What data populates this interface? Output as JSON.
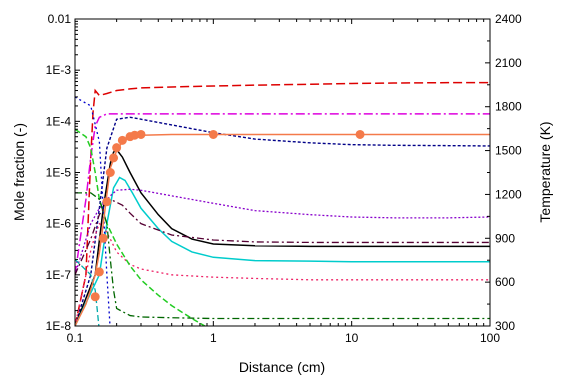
{
  "chart_data": {
    "type": "line",
    "xlabel": "Distance (cm)",
    "ylabel_left": "Mole fraction (-)",
    "ylabel_right": "Temperature (K)",
    "x_scale": "log",
    "y_left_scale": "log",
    "xlim": [
      0.1,
      100
    ],
    "ylim_left": [
      1e-08,
      0.01
    ],
    "ylim_right": [
      300,
      2400
    ],
    "x_ticks": [
      {
        "value": 0.1,
        "label": "0.1"
      },
      {
        "value": 1,
        "label": "1"
      },
      {
        "value": 10,
        "label": "10"
      },
      {
        "value": 100,
        "label": "100"
      }
    ],
    "y_left_ticks": [
      {
        "value": 1e-08,
        "label": "1E-8"
      },
      {
        "value": 1e-07,
        "label": "1E-7"
      },
      {
        "value": 1e-06,
        "label": "1E-6"
      },
      {
        "value": 1e-05,
        "label": "1E-5"
      },
      {
        "value": 0.0001,
        "label": "1E-4"
      },
      {
        "value": 0.001,
        "label": "1E-3"
      },
      {
        "value": 0.01,
        "label": "0.01"
      }
    ],
    "y_right_ticks": [
      {
        "value": 300,
        "label": "300"
      },
      {
        "value": 600,
        "label": "600"
      },
      {
        "value": 900,
        "label": "900"
      },
      {
        "value": 1200,
        "label": "1200"
      },
      {
        "value": 1500,
        "label": "1500"
      },
      {
        "value": 1800,
        "label": "1800"
      },
      {
        "value": 2100,
        "label": "2100"
      },
      {
        "value": 2400,
        "label": "2400"
      }
    ],
    "grid": false,
    "legend": "none",
    "series": [
      {
        "axis": "left",
        "color": "#dd0000",
        "dash": "9,4",
        "width": 1.5,
        "x": [
          0.1,
          0.12,
          0.13,
          0.135,
          0.14,
          0.15,
          0.17,
          0.2,
          0.25,
          0.3,
          0.5,
          1,
          2,
          5,
          10,
          20,
          50,
          100
        ],
        "y": [
          1e-08,
          1e-07,
          2e-05,
          0.00015,
          0.0004,
          0.00032,
          0.00035,
          0.0004,
          0.00043,
          0.00045,
          0.00047,
          0.00049,
          0.00051,
          0.00053,
          0.00055,
          0.00056,
          0.00057,
          0.00057
        ]
      },
      {
        "axis": "left",
        "color": "#dd00dd",
        "dash": "9,3,2,3",
        "width": 1.5,
        "x": [
          0.1,
          0.12,
          0.13,
          0.14,
          0.15,
          0.17,
          0.2,
          0.5,
          1,
          10,
          100
        ],
        "y": [
          1e-07,
          3e-06,
          2e-05,
          8e-05,
          0.00012,
          0.00014,
          0.00014,
          0.00014,
          0.00014,
          0.00014,
          0.00014
        ]
      },
      {
        "axis": "left",
        "color": "#000088",
        "dash": "3,2",
        "width": 1.4,
        "x": [
          0.1,
          0.13,
          0.15,
          0.17,
          0.2,
          0.25,
          0.3,
          0.5,
          1,
          2,
          5,
          10,
          20,
          50,
          100
        ],
        "y": [
          1e-08,
          1e-07,
          2e-06,
          3e-05,
          0.00011,
          0.00012,
          0.00011,
          8.5e-05,
          6e-05,
          4.5e-05,
          3.8e-05,
          3.5e-05,
          3.4e-05,
          3.35e-05,
          3.3e-05
        ]
      },
      {
        "axis": "left",
        "color": "#000000",
        "dash": "",
        "width": 1.5,
        "x": [
          0.1,
          0.14,
          0.16,
          0.18,
          0.19,
          0.2,
          0.22,
          0.25,
          0.3,
          0.4,
          0.5,
          0.7,
          1,
          2,
          5,
          10,
          50,
          100
        ],
        "y": [
          1e-08,
          1e-07,
          2e-06,
          1.5e-05,
          2.5e-05,
          2.8e-05,
          2e-05,
          1e-05,
          4e-06,
          1.5e-06,
          8e-07,
          5e-07,
          4e-07,
          3.7e-07,
          3.6e-07,
          3.6e-07,
          3.6e-07,
          3.6e-07
        ]
      },
      {
        "axis": "left",
        "color": "#00cccc",
        "dash": "",
        "width": 1.5,
        "x": [
          0.1,
          0.15,
          0.17,
          0.19,
          0.21,
          0.23,
          0.26,
          0.3,
          0.4,
          0.5,
          0.7,
          1,
          2,
          5,
          10,
          100
        ],
        "y": [
          1e-08,
          1e-07,
          1e-06,
          5e-06,
          8e-06,
          7e-06,
          4e-06,
          2e-06,
          8e-07,
          4.5e-07,
          2.8e-07,
          2.2e-07,
          1.9e-07,
          1.85e-07,
          1.8e-07,
          1.8e-07
        ]
      },
      {
        "axis": "left",
        "color": "#8800cc",
        "dash": "2,2",
        "width": 1.3,
        "x": [
          0.1,
          0.13,
          0.15,
          0.18,
          0.2,
          0.25,
          0.3,
          0.5,
          1,
          2,
          5,
          10,
          20,
          50,
          100
        ],
        "y": [
          1e-07,
          1e-06,
          2e-06,
          3.5e-06,
          4.5e-06,
          4.7e-06,
          4.5e-06,
          3.5e-06,
          2.5e-06,
          1.8e-06,
          1.5e-06,
          1.35e-06,
          1.3e-06,
          1.3e-06,
          1.35e-06
        ]
      },
      {
        "axis": "left",
        "color": "#550033",
        "dash": "7,3,2,3",
        "width": 1.3,
        "x": [
          0.1,
          0.13,
          0.15,
          0.17,
          0.19,
          0.22,
          0.25,
          0.3,
          0.5,
          1,
          2,
          5,
          10,
          50,
          100
        ],
        "y": [
          1e-07,
          5e-07,
          1.5e-06,
          2.5e-06,
          2.8e-06,
          2.3e-06,
          1.6e-06,
          1e-06,
          6e-07,
          4.8e-07,
          4.4e-07,
          4.3e-07,
          4.3e-07,
          4.3e-07,
          4.3e-07
        ]
      },
      {
        "axis": "left",
        "color": "#ee2266",
        "dash": "2,3",
        "width": 1.3,
        "x": [
          0.1,
          0.12,
          0.13,
          0.14,
          0.15,
          0.16,
          0.18,
          0.2,
          0.25,
          0.3,
          0.5,
          1,
          2,
          5,
          10,
          100
        ],
        "y": [
          1e-08,
          1e-07,
          3e-07,
          6e-07,
          1e-06,
          9e-07,
          5e-07,
          2.8e-07,
          1.6e-07,
          1.3e-07,
          1e-07,
          9e-08,
          8.5e-08,
          8e-08,
          8e-08,
          8e-08
        ]
      },
      {
        "axis": "left",
        "color": "#22cc22",
        "dash": "6,3",
        "width": 1.5,
        "x": [
          0.1,
          0.12,
          0.13,
          0.14,
          0.15,
          0.17,
          0.2,
          0.25,
          0.3,
          0.4,
          0.5,
          0.7,
          1
        ],
        "y": [
          7e-05,
          5e-05,
          3e-05,
          1e-05,
          3e-06,
          1e-06,
          4e-07,
          1.5e-07,
          8e-08,
          4e-08,
          2.5e-08,
          1.4e-08,
          8e-09
        ]
      },
      {
        "axis": "left",
        "color": "#006600",
        "dash": "7,3,2,3",
        "width": 1.3,
        "x": [
          0.1,
          0.13,
          0.15,
          0.17,
          0.18,
          0.19,
          0.2,
          0.25,
          0.3,
          0.5,
          1,
          5,
          10,
          100
        ],
        "y": [
          4e-06,
          4e-06,
          3e-06,
          1e-06,
          2e-07,
          5e-08,
          2.2e-08,
          1.6e-08,
          1.5e-08,
          1.45e-08,
          1.4e-08,
          1.4e-08,
          1.4e-08,
          1.4e-08
        ]
      },
      {
        "axis": "left",
        "color": "#0000cc",
        "dash": "2,3",
        "width": 1.3,
        "x": [
          0.1,
          0.13,
          0.15,
          0.16,
          0.17,
          0.18
        ],
        "y": [
          0.0003,
          0.0002,
          4e-05,
          2e-06,
          1e-07,
          8e-09
        ]
      },
      {
        "axis": "left",
        "color": "#00aaaa",
        "dash": "6,3",
        "width": 1.3,
        "x": [
          0.1,
          0.13,
          0.14,
          0.145,
          0.15
        ],
        "y": [
          2e-07,
          1e-07,
          5e-08,
          2e-08,
          8e-09
        ]
      },
      {
        "axis": "right",
        "color": "#f47a4a",
        "dash": "",
        "width": 1.5,
        "marker": "circle",
        "x": [
          0.1,
          0.12,
          0.13,
          0.14,
          0.15,
          0.16,
          0.17,
          0.18,
          0.2,
          0.22,
          0.25,
          0.27,
          0.3,
          0.5,
          1,
          2,
          5,
          11.5,
          20,
          50,
          100
        ],
        "y": [
          300,
          450,
          550,
          650,
          800,
          1000,
          1200,
          1380,
          1500,
          1560,
          1590,
          1600,
          1605,
          1610,
          1610,
          1610,
          1610,
          1610,
          1610,
          1610,
          1610
        ],
        "marker_points": {
          "x": [
            0.14,
            0.15,
            0.16,
            0.17,
            0.18,
            0.19,
            0.2,
            0.22,
            0.25,
            0.27,
            0.3,
            1,
            11.5
          ],
          "y": [
            500,
            670,
            900,
            1150,
            1350,
            1450,
            1520,
            1570,
            1595,
            1605,
            1610,
            1610,
            1610
          ]
        }
      }
    ]
  }
}
